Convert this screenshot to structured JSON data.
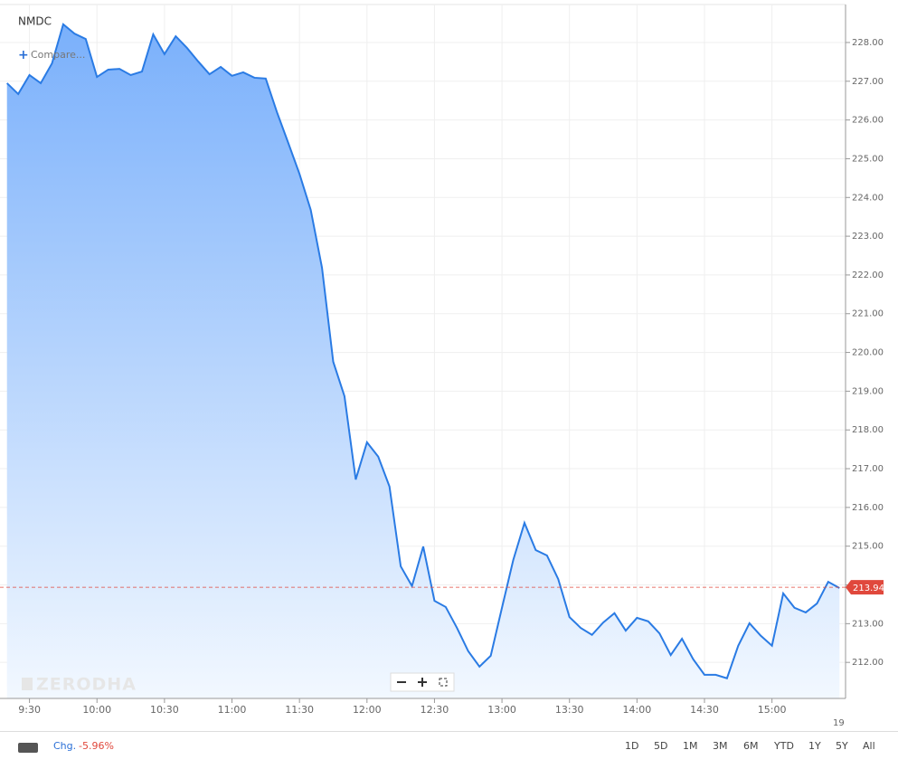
{
  "symbol": "NMDC",
  "compare": "Compare...",
  "watermark": "ZERODHA",
  "date_stub": "19",
  "toolbar": {
    "change_label": "Chg.",
    "change_value": "-5.96%",
    "ranges": [
      "1D",
      "5D",
      "1M",
      "3M",
      "6M",
      "YTD",
      "1Y",
      "5Y",
      "All"
    ]
  },
  "chart_data": {
    "type": "area",
    "color": "#2a7be4",
    "grid": true,
    "last_price": 213.94,
    "x": [
      560,
      565,
      570,
      575,
      580,
      585,
      590,
      595,
      600,
      605,
      610,
      615,
      620,
      625,
      630,
      635,
      640,
      645,
      650,
      655,
      660,
      665,
      670,
      675,
      680,
      685,
      690,
      695,
      700,
      705,
      710,
      715,
      720,
      725,
      730,
      735,
      740,
      745,
      750,
      755,
      760,
      765,
      770,
      775,
      780,
      785,
      790,
      795,
      800,
      805,
      810,
      815,
      820,
      825,
      830,
      835,
      840,
      845,
      850,
      855,
      860,
      865,
      870,
      875,
      880,
      885,
      890,
      895,
      900,
      905,
      910,
      915,
      920,
      925,
      930
    ],
    "values": [
      226.95,
      226.67,
      227.16,
      226.95,
      227.46,
      228.47,
      228.23,
      228.09,
      227.11,
      227.3,
      227.32,
      227.16,
      227.25,
      228.21,
      227.7,
      228.16,
      227.86,
      227.51,
      227.18,
      227.37,
      227.14,
      227.23,
      227.09,
      227.07,
      226.2,
      225.41,
      224.61,
      223.68,
      222.19,
      219.76,
      218.87,
      216.72,
      217.68,
      217.31,
      216.54,
      214.48,
      213.97,
      214.99,
      213.59,
      213.43,
      212.89,
      212.29,
      211.89,
      212.17,
      213.41,
      214.64,
      215.6,
      214.9,
      214.76,
      214.15,
      213.17,
      212.89,
      212.71,
      213.03,
      213.27,
      212.82,
      213.15,
      213.06,
      212.75,
      212.19,
      212.61,
      212.08,
      211.68,
      211.68,
      211.59,
      212.43,
      213.01,
      212.69,
      212.43,
      213.78,
      213.41,
      213.29,
      213.52,
      214.08,
      213.92
    ],
    "xlim": [
      556.9,
      932.7
    ],
    "ylim": [
      211.07,
      228.98
    ],
    "xticks": [
      {
        "value": 570,
        "label": "9:30"
      },
      {
        "value": 600,
        "label": "10:00"
      },
      {
        "value": 630,
        "label": "10:30"
      },
      {
        "value": 660,
        "label": "11:00"
      },
      {
        "value": 690,
        "label": "11:30"
      },
      {
        "value": 720,
        "label": "12:00"
      },
      {
        "value": 750,
        "label": "12:30"
      },
      {
        "value": 780,
        "label": "13:00"
      },
      {
        "value": 810,
        "label": "13:30"
      },
      {
        "value": 840,
        "label": "14:00"
      },
      {
        "value": 870,
        "label": "14:30"
      },
      {
        "value": 900,
        "label": "15:00"
      }
    ],
    "yticks": [
      {
        "value": 212,
        "label": "212.00"
      },
      {
        "value": 213,
        "label": "213.00"
      },
      {
        "value": 214,
        "label": "214.00"
      },
      {
        "value": 215,
        "label": "215.00"
      },
      {
        "value": 216,
        "label": "216.00"
      },
      {
        "value": 217,
        "label": "217.00"
      },
      {
        "value": 218,
        "label": "218.00"
      },
      {
        "value": 219,
        "label": "219.00"
      },
      {
        "value": 220,
        "label": "220.00"
      },
      {
        "value": 221,
        "label": "221.00"
      },
      {
        "value": 222,
        "label": "222.00"
      },
      {
        "value": 223,
        "label": "223.00"
      },
      {
        "value": 224,
        "label": "224.00"
      },
      {
        "value": 225,
        "label": "225.00"
      },
      {
        "value": 226,
        "label": "226.00"
      },
      {
        "value": 227,
        "label": "227.00"
      },
      {
        "value": 228,
        "label": "228.00"
      }
    ]
  }
}
